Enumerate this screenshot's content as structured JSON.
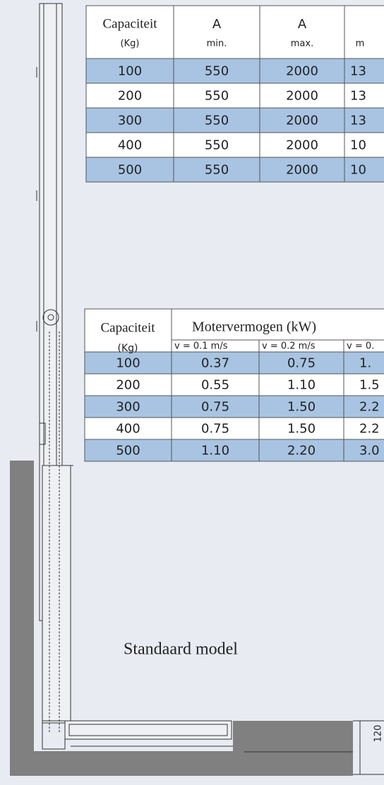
{
  "table1": {
    "header": [
      {
        "title": "Capaciteit",
        "unit": "(Kg)"
      },
      {
        "title": "A",
        "unit": "min."
      },
      {
        "title": "A",
        "unit": "max."
      },
      {
        "unit": "m"
      }
    ],
    "rows": [
      [
        "100",
        "550",
        "2000",
        "13"
      ],
      [
        "200",
        "550",
        "2000",
        "13"
      ],
      [
        "300",
        "550",
        "2000",
        "13"
      ],
      [
        "400",
        "550",
        "2000",
        "10"
      ],
      [
        "500",
        "550",
        "2000",
        "10"
      ]
    ]
  },
  "table2": {
    "header": {
      "capacity": "Capaciteit",
      "unit": "(Kg)",
      "power": "Motervermogen (kW)",
      "speeds": [
        "v = 0.1 m/s",
        "v = 0.2 m/s",
        "v = 0."
      ]
    },
    "rows": [
      [
        "100",
        "0.37",
        "0.75",
        "1."
      ],
      [
        "200",
        "0.55",
        "1.10",
        "1.5"
      ],
      [
        "300",
        "0.75",
        "1.50",
        "2.2"
      ],
      [
        "400",
        "0.75",
        "1.50",
        "2.2"
      ],
      [
        "500",
        "1.10",
        "2.20",
        "3.0"
      ]
    ]
  },
  "caption": "Standaard model",
  "dimension": "120"
}
